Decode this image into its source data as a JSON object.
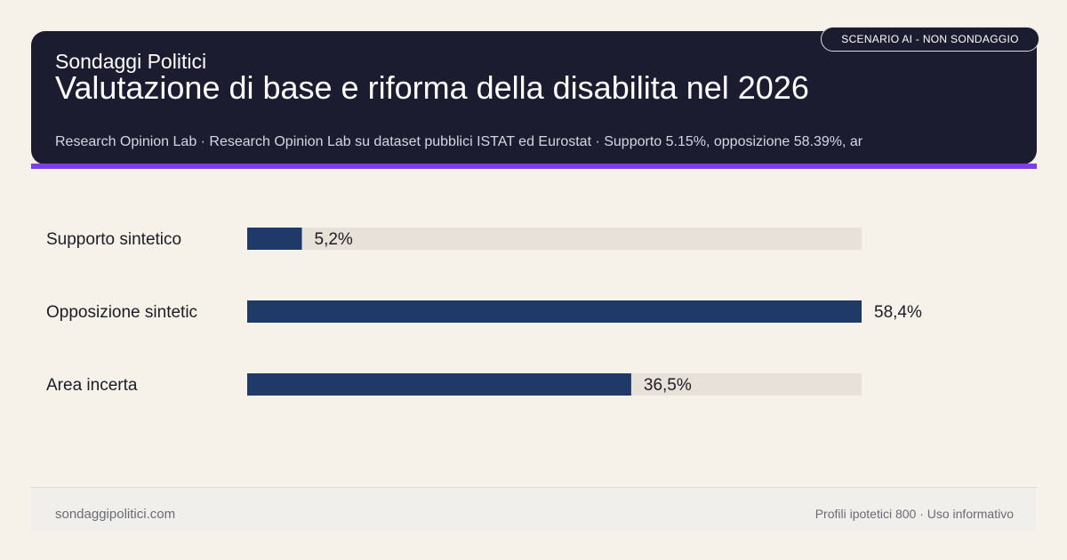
{
  "header": {
    "badge": "SCENARIO AI - NON SONDAGGIO",
    "brand": "Sondaggi Politici",
    "title": "Valutazione di base e riforma della disabilita nel 2026",
    "subtitle": "Research Opinion Lab · Research Opinion Lab su dataset pubblici ISTAT ed Eurostat · Supporto 5.15%, opposizione 58.39%, ar"
  },
  "chart_data": {
    "type": "bar",
    "orientation": "horizontal",
    "categories": [
      "Supporto sintetico",
      "Opposizione sintetic",
      "Area incerta"
    ],
    "values": [
      5.2,
      58.4,
      36.5
    ],
    "value_labels": [
      "5,2%",
      "58,4%",
      "36,5%"
    ],
    "xlim": [
      0,
      58.4
    ],
    "colors": {
      "bar": "#1f3a68",
      "track": "#e8e1d9"
    }
  },
  "footer": {
    "site": "sondaggipolitici.com",
    "note": "Profili ipotetici 800 · Uso informativo"
  }
}
